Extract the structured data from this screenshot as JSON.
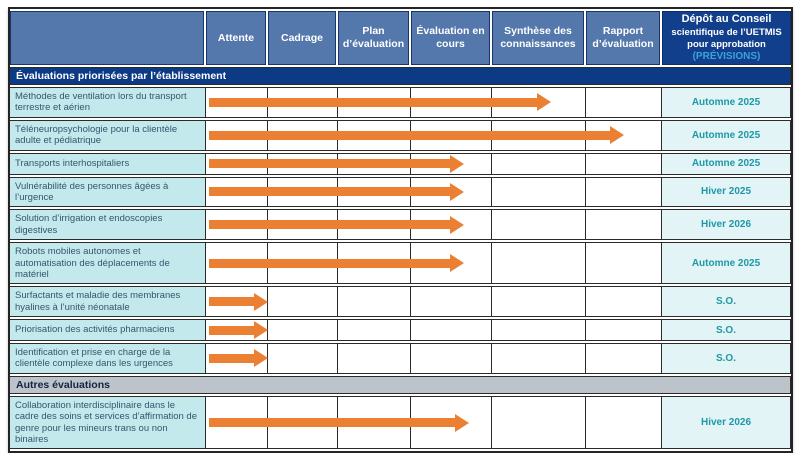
{
  "colors": {
    "accent-orange": "#EC8032",
    "header-blue": "#5478AC",
    "deposit-navy": "#123F8C",
    "band-navy": "#0D3A85",
    "band-gray": "#BDC3CB",
    "label-bg": "#C3E9ED",
    "forecast-bg": "#E2F4F6",
    "teal-text": "#1E98A6",
    "label-text": "#35566C",
    "previsions-blue": "#3BA2DE",
    "border-dark": "#2B2B2B"
  },
  "header": {
    "stages": [
      "Attente",
      "Cadrage",
      "Plan d’évaluation",
      "Évaluation en cours",
      "Synthèse des connaissances",
      "Rapport d’évaluation"
    ],
    "deposit_title_line1": "Dépôt au Conseil",
    "deposit_title_rest": "scientifique de l’UETMIS pour approbation",
    "deposit_previsions": "(PRÉVISIONS)"
  },
  "sections": [
    {
      "title": "Évaluations priorisées par l’établissement",
      "style": "navy",
      "rows": [
        {
          "label": "Méthodes de ventilation lors du transport terrestre et aérien",
          "forecast": "Automne 2025",
          "progress": 0.75
        },
        {
          "label": "Téléneuropsychologie pour la clientèle adulte et pédiatrique",
          "forecast": "Automne 2025",
          "progress": 0.91
        },
        {
          "label": "Transports interhospitaliers",
          "forecast": "Automne 2025",
          "progress": 0.56
        },
        {
          "label": "Vulnérabilité des personnes âgées à l’urgence",
          "forecast": "Hiver 2025",
          "progress": 0.56
        },
        {
          "label": "Solution d’irrigation et endoscopies digestives",
          "forecast": "Hiver 2026",
          "progress": 0.56
        },
        {
          "label": "Robots mobiles autonomes et automatisation des déplacements de matériel",
          "forecast": "Automne 2025",
          "progress": 0.56
        },
        {
          "label": "Surfactants et maladie des membranes hyalines à l’unité néonatale",
          "forecast": "S.O.",
          "progress": 0.13
        },
        {
          "label": "Priorisation des activités pharmaciens",
          "forecast": "S.O.",
          "progress": 0.13
        },
        {
          "label": "Identification et prise en charge de la clientèle complexe dans les urgences",
          "forecast": "S.O.",
          "progress": 0.13
        }
      ]
    },
    {
      "title": "Autres évaluations",
      "style": "gray",
      "rows": [
        {
          "label": "Collaboration interdisciplinaire dans le cadre des soins et services d’affirmation de genre pour les mineurs trans ou non binaires",
          "forecast": "Hiver 2026",
          "progress": 0.57
        }
      ]
    }
  ],
  "chart_data": {
    "type": "gantt",
    "stages": [
      "Attente",
      "Cadrage",
      "Plan d’évaluation",
      "Évaluation en cours",
      "Synthèse des connaissances",
      "Rapport d’évaluation"
    ],
    "forecast_column": "Dépôt au Conseil scientifique de l’UETMIS pour approbation (PRÉVISIONS)",
    "projects": [
      {
        "name": "Méthodes de ventilation lors du transport terrestre et aérien",
        "group": "Évaluations priorisées par l’établissement",
        "stage_reached": "Synthèse des connaissances",
        "progress_fraction": 0.75,
        "forecast": "Automne 2025"
      },
      {
        "name": "Téléneuropsychologie pour la clientèle adulte et pédiatrique",
        "group": "Évaluations priorisées par l’établissement",
        "stage_reached": "Rapport d’évaluation",
        "progress_fraction": 0.91,
        "forecast": "Automne 2025"
      },
      {
        "name": "Transports interhospitaliers",
        "group": "Évaluations priorisées par l’établissement",
        "stage_reached": "Évaluation en cours",
        "progress_fraction": 0.56,
        "forecast": "Automne 2025"
      },
      {
        "name": "Vulnérabilité des personnes âgées à l’urgence",
        "group": "Évaluations priorisées par l’établissement",
        "stage_reached": "Évaluation en cours",
        "progress_fraction": 0.56,
        "forecast": "Hiver 2025"
      },
      {
        "name": "Solution d’irrigation et endoscopies digestives",
        "group": "Évaluations priorisées par l’établissement",
        "stage_reached": "Évaluation en cours",
        "progress_fraction": 0.56,
        "forecast": "Hiver 2026"
      },
      {
        "name": "Robots mobiles autonomes et automatisation des déplacements de matériel",
        "group": "Évaluations priorisées par l’établissement",
        "stage_reached": "Évaluation en cours",
        "progress_fraction": 0.56,
        "forecast": "Automne 2025"
      },
      {
        "name": "Surfactants et maladie des membranes hyalines à l’unité néonatale",
        "group": "Évaluations priorisées par l’établissement",
        "stage_reached": "Attente",
        "progress_fraction": 0.13,
        "forecast": "S.O."
      },
      {
        "name": "Priorisation des activités pharmaciens",
        "group": "Évaluations priorisées par l’établissement",
        "stage_reached": "Attente",
        "progress_fraction": 0.13,
        "forecast": "S.O."
      },
      {
        "name": "Identification et prise en charge de la clientèle complexe dans les urgences",
        "group": "Évaluations priorisées par l’établissement",
        "stage_reached": "Attente",
        "progress_fraction": 0.13,
        "forecast": "S.O."
      },
      {
        "name": "Collaboration interdisciplinaire dans le cadre des soins et services d’affirmation de genre pour les mineurs trans ou non binaires",
        "group": "Autres évaluations",
        "stage_reached": "Évaluation en cours",
        "progress_fraction": 0.57,
        "forecast": "Hiver 2026"
      }
    ]
  }
}
